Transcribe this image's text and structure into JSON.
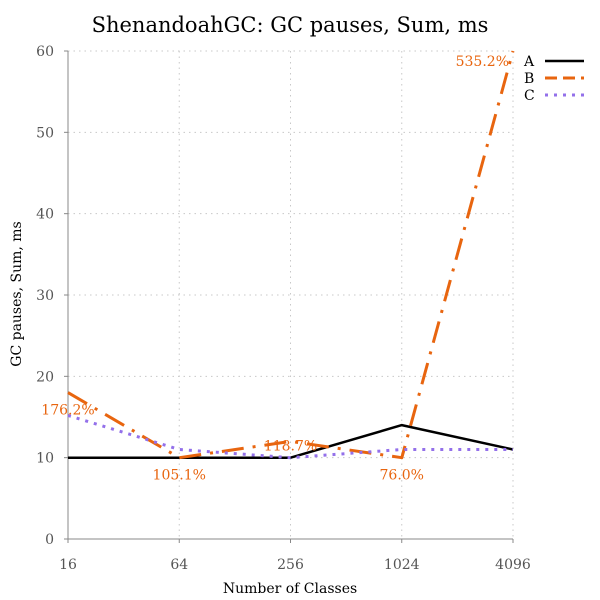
{
  "chart_data": {
    "type": "line",
    "title": "ShenandoahGC: GC pauses, Sum, ms",
    "xlabel": "Number of Classes",
    "ylabel": "GC pauses, Sum, ms",
    "x_scale": "log2",
    "categories": [
      "16",
      "64",
      "256",
      "1024",
      "4096"
    ],
    "x": [
      16,
      64,
      256,
      1024,
      4096
    ],
    "ylim": [
      0,
      60
    ],
    "yticks": [
      "0",
      "10",
      "20",
      "30",
      "40",
      "50",
      "60"
    ],
    "grid": true,
    "legend_position": "top-right",
    "series": [
      {
        "name": "A",
        "values": [
          10,
          10,
          10,
          14,
          11
        ],
        "color": "#000000",
        "style": "solid"
      },
      {
        "name": "B",
        "values": [
          18,
          10,
          12,
          10,
          60
        ],
        "color": "#e8650f",
        "style": "dash-dot"
      },
      {
        "name": "C",
        "values": [
          15.2,
          11,
          10,
          11,
          11
        ],
        "color": "#9370ea",
        "style": "dotted"
      }
    ],
    "annotations": [
      "176.2%",
      "105.1%",
      "118.7%",
      "76.0%",
      "535.2%"
    ]
  }
}
